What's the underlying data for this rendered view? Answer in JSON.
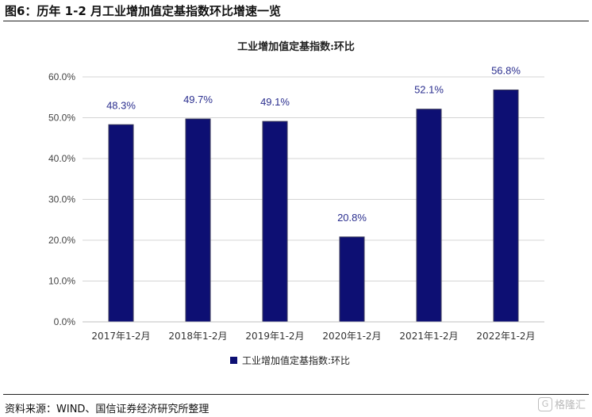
{
  "figure": {
    "title": "图6：历年 1-2 月工业增加值定基指数环比增速一览",
    "source": "资料来源：WIND、国信证券经济研究所整理",
    "watermark": "格隆汇",
    "watermark_icon": "G"
  },
  "chart_data": {
    "type": "bar",
    "title": "工业增加值定基指数:环比",
    "categories": [
      "2017年1-2月",
      "2018年1-2月",
      "2019年1-2月",
      "2020年1-2月",
      "2021年1-2月",
      "2022年1-2月"
    ],
    "series": [
      {
        "name": "工业增加值定基指数:环比",
        "values": [
          48.3,
          49.7,
          49.1,
          20.8,
          52.1,
          56.8
        ]
      }
    ],
    "data_labels": [
      "48.3%",
      "49.7%",
      "49.1%",
      "20.8%",
      "52.1%",
      "56.8%"
    ],
    "yticks": [
      "0.0%",
      "10.0%",
      "20.0%",
      "30.0%",
      "40.0%",
      "50.0%",
      "60.0%"
    ],
    "ylim": [
      0,
      60
    ],
    "xlabel": "",
    "ylabel": "",
    "grid": true,
    "legend_position": "bottom-center",
    "colors": {
      "bar": "#0d0f73",
      "bar_edge": "#3a3a5a",
      "label": "#2b2f8f",
      "grid": "#d4d4d4",
      "axis_text": "#444444"
    }
  }
}
